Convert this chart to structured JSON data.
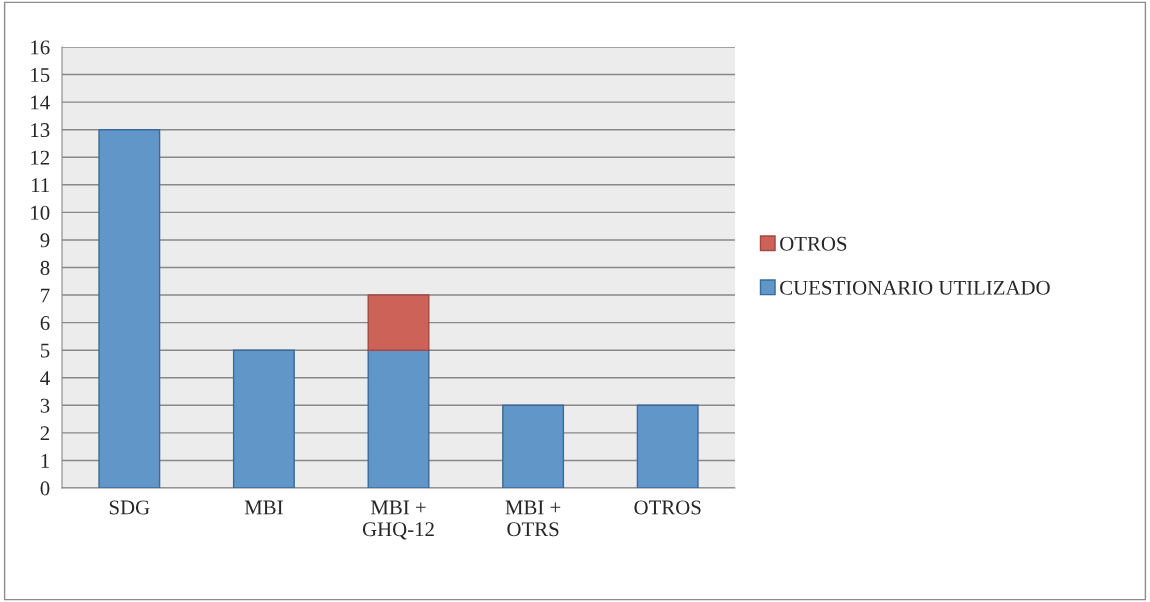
{
  "chart_data": {
    "type": "bar",
    "stacked": true,
    "categories": [
      "SDG",
      "MBI",
      "MBI +\nGHQ-12",
      "MBI +\nOTRS",
      "OTROS"
    ],
    "series": [
      {
        "name": "CUESTIONARIO UTILIZADO",
        "color": "#6096c8",
        "values": [
          13,
          5,
          5,
          3,
          3
        ]
      },
      {
        "name": "OTROS",
        "color": "#cd6258",
        "values": [
          null,
          null,
          2,
          null,
          null
        ]
      }
    ],
    "ylim": [
      0,
      16
    ],
    "yticks": [
      0,
      1,
      2,
      3,
      4,
      5,
      6,
      7,
      8,
      9,
      10,
      11,
      12,
      13,
      14,
      15,
      16
    ],
    "grid": "y",
    "legend": "right"
  }
}
